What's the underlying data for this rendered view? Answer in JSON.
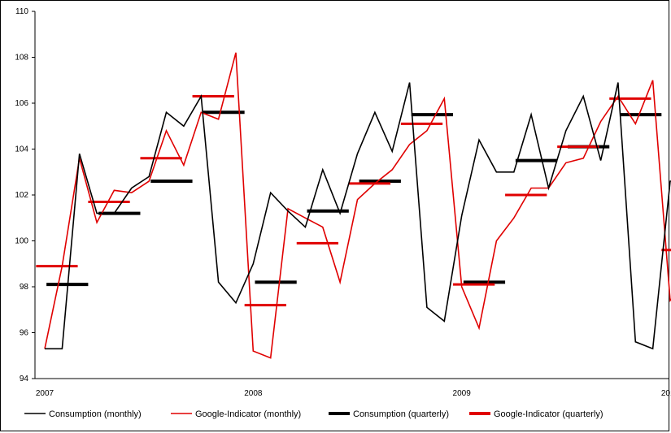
{
  "chart_data": {
    "type": "line",
    "title": "",
    "xlabel": "",
    "ylabel": "",
    "ylim": [
      94,
      110
    ],
    "y_ticks": [
      "94",
      "96",
      "98",
      "100",
      "102",
      "104",
      "106",
      "108",
      "110"
    ],
    "x_ticks": [
      "2007",
      "2008",
      "2009",
      "2010"
    ],
    "grid": false,
    "legend_position": "bottom",
    "x": [
      "2007-01",
      "2007-02",
      "2007-03",
      "2007-04",
      "2007-05",
      "2007-06",
      "2007-07",
      "2007-08",
      "2007-09",
      "2007-10",
      "2007-11",
      "2007-12",
      "2008-01",
      "2008-02",
      "2008-03",
      "2008-04",
      "2008-05",
      "2008-06",
      "2008-07",
      "2008-08",
      "2008-09",
      "2008-10",
      "2008-11",
      "2008-12",
      "2009-01",
      "2009-02",
      "2009-03",
      "2009-04",
      "2009-05",
      "2009-06",
      "2009-07",
      "2009-08",
      "2009-09",
      "2009-10",
      "2009-11",
      "2009-12",
      "2010-01",
      "2010-02",
      "2010-03",
      "2010-04",
      "2010-05",
      "2010-06",
      "2010-07",
      "2010-08"
    ],
    "series": [
      {
        "name": "Consumption (monthly)",
        "style": "thin-line",
        "color": "#000000",
        "values": [
          95.3,
          95.3,
          103.8,
          101.2,
          101.2,
          102.3,
          102.8,
          105.6,
          105.0,
          106.3,
          98.2,
          97.3,
          99.0,
          102.1,
          101.3,
          100.6,
          103.1,
          101.2,
          103.8,
          105.6,
          103.9,
          106.9,
          97.1,
          96.5,
          101.1,
          104.4,
          103.0,
          103.0,
          105.5,
          102.3,
          104.8,
          106.3,
          103.5,
          106.9,
          95.6,
          95.3,
          102.6,
          102.7,
          102.3,
          103.9,
          null,
          null,
          null,
          null
        ]
      },
      {
        "name": "Google-Indicator (monthly)",
        "style": "thin-line",
        "color": "#e00000",
        "values": [
          95.3,
          98.9,
          103.6,
          100.8,
          102.2,
          102.1,
          102.6,
          104.8,
          103.3,
          105.6,
          105.3,
          108.2,
          95.2,
          94.9,
          101.4,
          101.0,
          100.6,
          98.2,
          101.8,
          102.5,
          103.1,
          104.2,
          104.8,
          106.2,
          98.0,
          96.2,
          100.0,
          101.0,
          102.3,
          102.3,
          103.4,
          103.6,
          105.2,
          106.3,
          105.1,
          107.0,
          97.4,
          98.3,
          103.0,
          104.7,
          101.0,
          103.1,
          104.4,
          101.3
        ]
      }
    ],
    "quarterly_series": [
      {
        "name": "Consumption (quarterly)",
        "style": "thick-segment",
        "color": "#000000",
        "quarters": [
          "2007-Q1",
          "2007-Q2",
          "2007-Q3",
          "2007-Q4",
          "2008-Q1",
          "2008-Q2",
          "2008-Q3",
          "2008-Q4",
          "2009-Q1",
          "2009-Q2",
          "2009-Q3",
          "2009-Q4",
          "2010-Q1",
          "2010-Q2"
        ],
        "values": [
          98.1,
          101.2,
          102.6,
          105.6,
          98.2,
          101.3,
          102.6,
          105.5,
          98.2,
          103.5,
          104.1,
          105.5,
          97.8,
          103.0
        ]
      },
      {
        "name": "Google-Indicator (quarterly)",
        "style": "thick-segment",
        "color": "#e00000",
        "quarters": [
          "2007-Q1",
          "2007-Q2",
          "2007-Q3",
          "2007-Q4",
          "2008-Q1",
          "2008-Q2",
          "2008-Q3",
          "2008-Q4",
          "2009-Q1",
          "2009-Q2",
          "2009-Q3",
          "2009-Q4",
          "2010-Q1",
          "2010-Q2"
        ],
        "values": [
          98.9,
          101.7,
          103.6,
          106.3,
          97.2,
          99.9,
          102.5,
          105.1,
          98.1,
          102.0,
          104.1,
          106.2,
          99.6,
          102.9
        ]
      }
    ]
  }
}
